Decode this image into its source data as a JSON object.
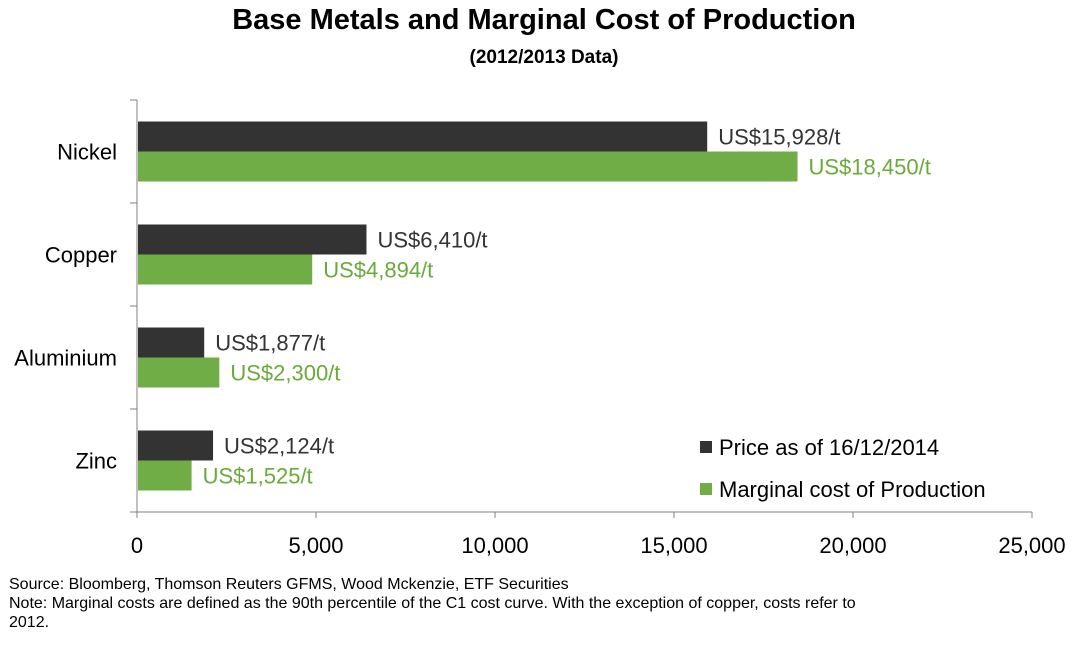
{
  "chart_data": {
    "type": "bar",
    "orientation": "horizontal",
    "title": "Base Metals and Marginal Cost of Production",
    "subtitle": "(2012/2013 Data)",
    "categories": [
      "Nickel",
      "Copper",
      "Aluminium",
      "Zinc"
    ],
    "series": [
      {
        "name": "Price as of 16/12/2014",
        "color": "#333333",
        "label_color": "#333333",
        "values": [
          15928,
          6410,
          1877,
          2124
        ],
        "labels": [
          "US$15,928/t",
          "US$6,410/t",
          "US$1,877/t",
          "US$2,124/t"
        ]
      },
      {
        "name": "Marginal cost of Production",
        "color": "#70ad47",
        "label_color": "#6aaa3a",
        "values": [
          18450,
          4894,
          2300,
          1525
        ],
        "labels": [
          "US$18,450/t",
          "US$4,894/t",
          "US$2,300/t",
          "US$1,525/t"
        ]
      }
    ],
    "xlim": [
      0,
      25000
    ],
    "xticks": [
      0,
      5000,
      10000,
      15000,
      20000,
      25000
    ],
    "xtick_labels": [
      "0",
      "5,000",
      "10,000",
      "15,000",
      "20,000",
      "25,000"
    ],
    "xlabel": "",
    "ylabel": "",
    "grid": false,
    "legend_position": "bottom-right"
  },
  "footer": {
    "source": "Source: Bloomberg, Thomson Reuters GFMS, Wood Mckenzie, ETF Securities",
    "note_line1": "Note: Marginal costs are defined as the 90th percentile of the C1 cost curve. With the exception of copper, costs refer to",
    "note_line2": "2012."
  }
}
